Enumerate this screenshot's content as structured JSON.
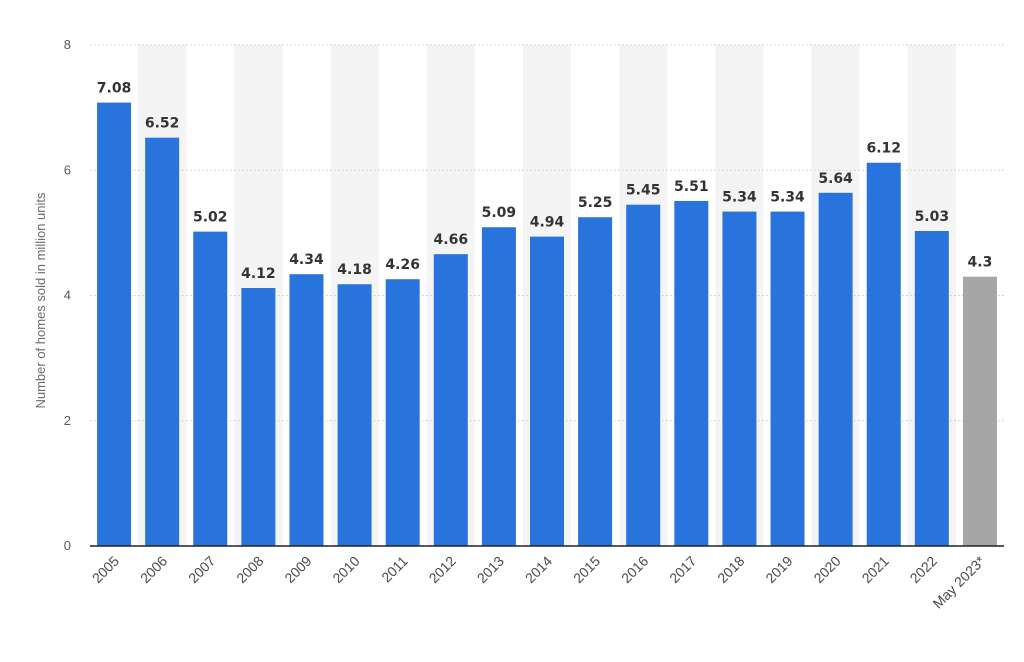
{
  "chart_data": {
    "type": "bar",
    "categories": [
      "2005",
      "2006",
      "2007",
      "2008",
      "2009",
      "2010",
      "2011",
      "2012",
      "2013",
      "2014",
      "2015",
      "2016",
      "2017",
      "2018",
      "2019",
      "2020",
      "2021",
      "2022",
      "May 2023*"
    ],
    "values": [
      7.08,
      6.52,
      5.02,
      4.12,
      4.34,
      4.18,
      4.26,
      4.66,
      5.09,
      4.94,
      5.25,
      5.45,
      5.51,
      5.34,
      5.34,
      5.64,
      6.12,
      5.03,
      4.3
    ],
    "value_labels": [
      "7.08",
      "6.52",
      "5.02",
      "4.12",
      "4.34",
      "4.18",
      "4.26",
      "4.66",
      "5.09",
      "4.94",
      "5.25",
      "5.45",
      "5.51",
      "5.34",
      "5.34",
      "5.64",
      "6.12",
      "5.03",
      "4.3"
    ],
    "highlight_index": 18,
    "xlabel": "",
    "ylabel": "Number of homes sold in million units",
    "ylim": [
      0,
      8
    ],
    "yticks": [
      0,
      2,
      4,
      6,
      8
    ],
    "ytick_labels": [
      "0",
      "2",
      "4",
      "6",
      "8"
    ],
    "grid": "horizontal dotted",
    "colors": {
      "bar": "#2874dc",
      "highlight_bar": "#a6a6a6",
      "band": "#f4f4f4",
      "grid": "#c9c9c9",
      "axis": "#222222"
    }
  }
}
